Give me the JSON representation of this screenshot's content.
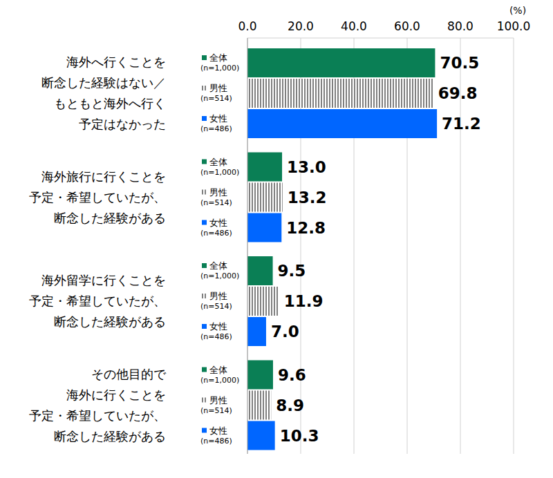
{
  "chart_data": {
    "type": "bar",
    "orientation": "horizontal",
    "xlabel": "(%)",
    "categories": [
      "海外へ行くことを\n断念した経験はない／\nもともと海外へ行く\n予定はなかった",
      "海外旅行に行くことを\n予定・希望していたが、\n断念した経験がある",
      "海外留学に行くことを\n予定・希望していたが、\n断念した経験がある",
      "その他目的で\n海外に行くことを\n予定・希望していたが、\n断念した経験がある"
    ],
    "series": [
      {
        "name": "全体",
        "sample_size_label": "(n=1,000)",
        "color": "#0a7f55",
        "values": [
          70.5,
          13.0,
          9.5,
          9.6
        ],
        "value_labels": [
          "70.5",
          "13.0",
          "9.5",
          "9.6"
        ]
      },
      {
        "name": "男性",
        "sample_size_label": "(n=514)",
        "color": "#7f7f7f",
        "line_style": "striped",
        "values": [
          69.8,
          13.2,
          11.9,
          8.9
        ],
        "value_labels": [
          "69.8",
          "13.2",
          "11.9",
          "8.9"
        ]
      },
      {
        "name": "女性",
        "sample_size_label": "(n=486)",
        "color": "#0066ff",
        "values": [
          71.2,
          12.8,
          7.0,
          10.3
        ],
        "value_labels": [
          "71.2",
          "12.8",
          "7.0",
          "10.3"
        ]
      }
    ],
    "xlim": [
      0,
      100
    ],
    "xticks": [
      {
        "value": 0,
        "label": "0.0"
      },
      {
        "value": 20,
        "label": "20.0"
      },
      {
        "value": 40,
        "label": "40.0"
      },
      {
        "value": 60,
        "label": "60.0"
      },
      {
        "value": 80,
        "label": "80.0"
      },
      {
        "value": 100,
        "label": "100.0"
      }
    ],
    "grid": true,
    "data_labels": true
  }
}
